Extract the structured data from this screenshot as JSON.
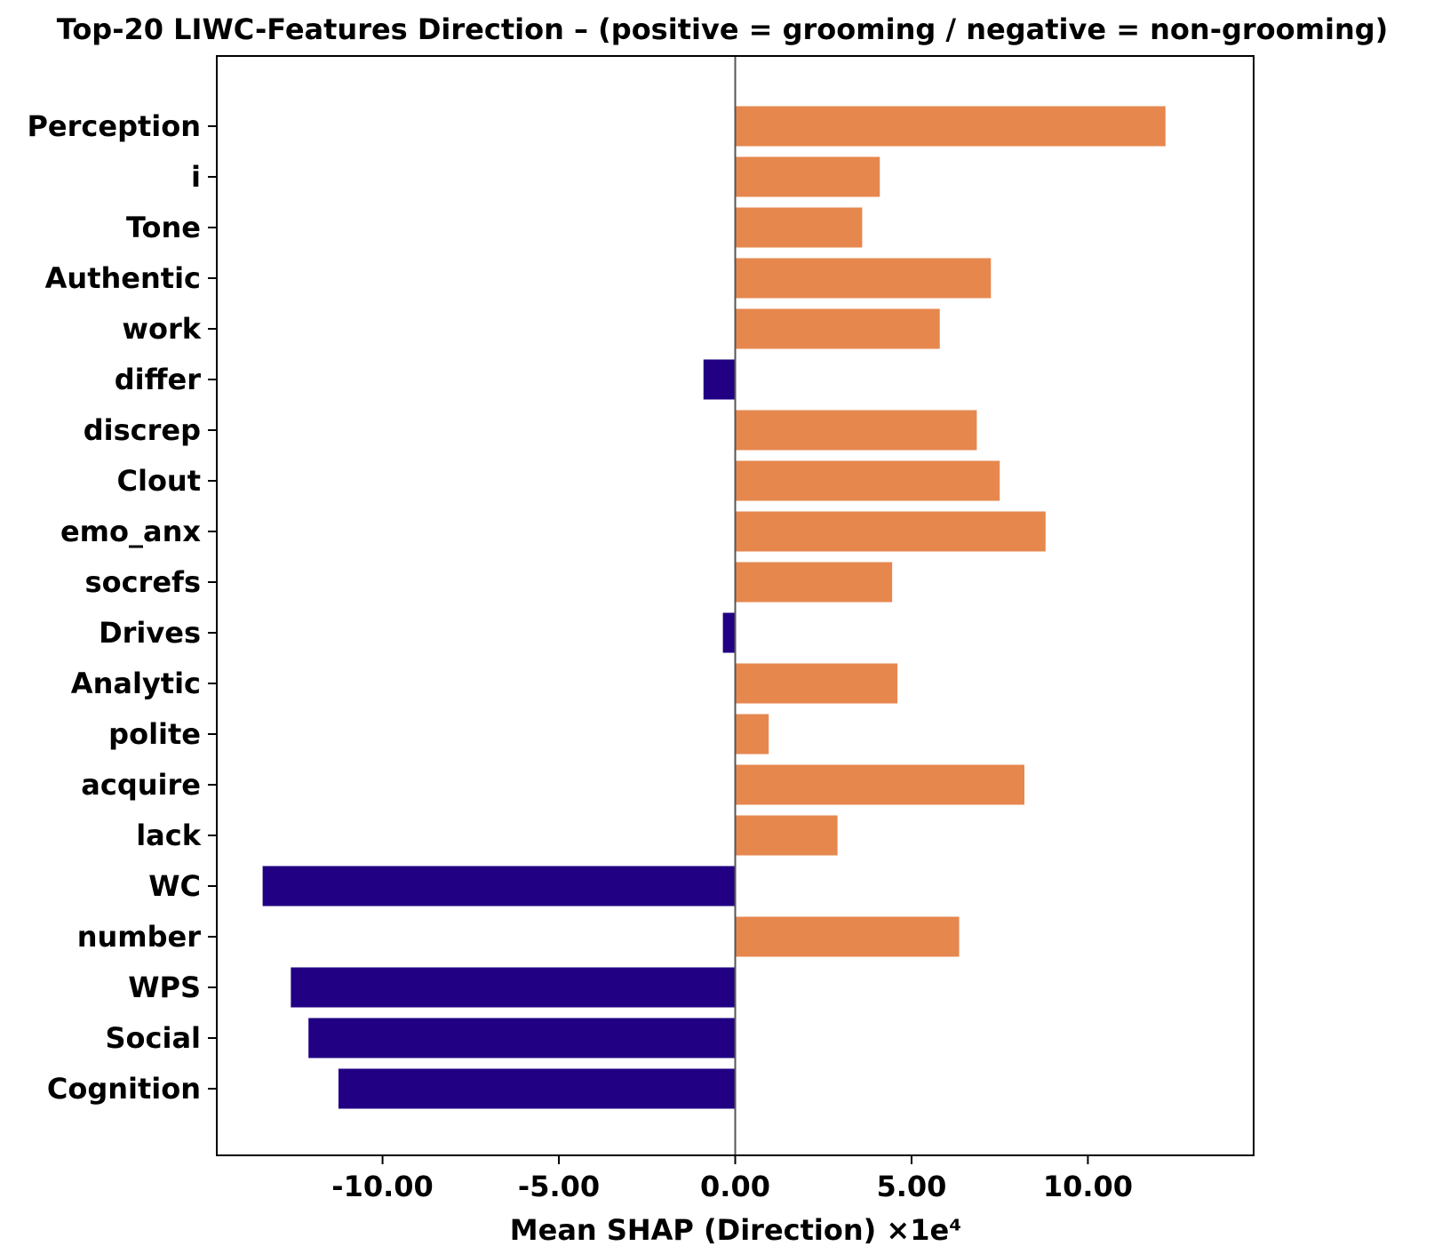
{
  "chart_data": {
    "type": "bar",
    "orientation": "horizontal",
    "title": "Top-20 LIWC-Features Direction – (positive = grooming / negative = non-grooming)",
    "xlabel": "Mean SHAP (Direction) ×1e⁴",
    "ylabel": "",
    "xlim": [
      -14.7,
      14.7
    ],
    "xticks": [
      -10,
      -5,
      0,
      5,
      10
    ],
    "xtick_labels": [
      "-10.00",
      "-5.00",
      "0.00",
      "5.00",
      "10.00"
    ],
    "categories": [
      "Perception",
      "i",
      "Tone",
      "Authentic",
      "work",
      "differ",
      "discrep",
      "Clout",
      "emo_anx",
      "socrefs",
      "Drives",
      "Analytic",
      "polite",
      "acquire",
      "lack",
      "WC",
      "number",
      "WPS",
      "Social",
      "Cognition"
    ],
    "values": [
      12.2,
      4.1,
      3.6,
      7.25,
      5.8,
      -0.9,
      6.85,
      7.5,
      8.8,
      4.45,
      -0.35,
      4.6,
      0.95,
      8.2,
      2.9,
      -13.4,
      6.35,
      -12.6,
      -12.1,
      -11.25
    ],
    "colors": {
      "positive": "#e6874e",
      "negative": "#210083"
    },
    "zero_line_color": "#555555",
    "grid": false
  }
}
